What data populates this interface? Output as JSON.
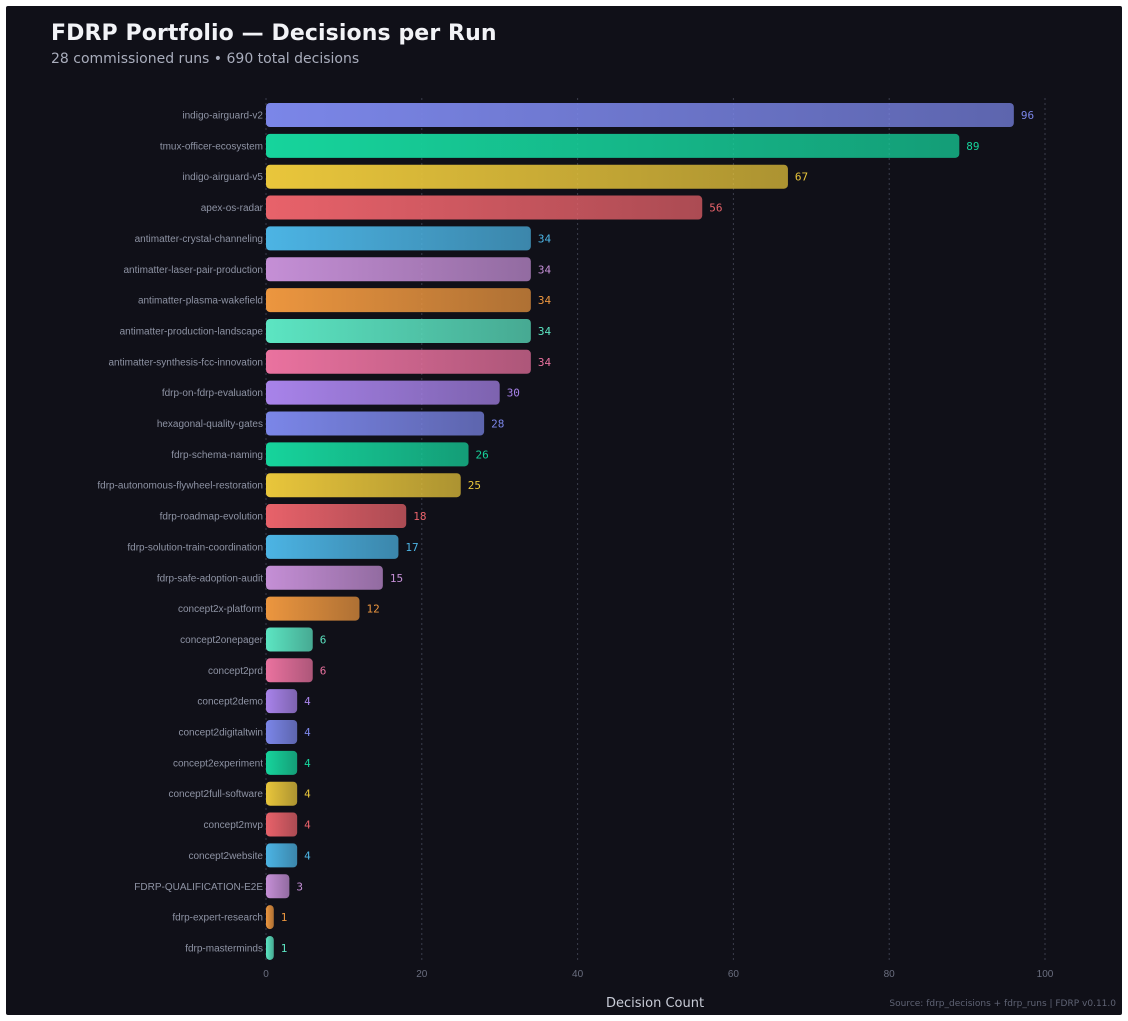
{
  "chart_data": {
    "type": "bar",
    "orientation": "horizontal",
    "title": "FDRP Portfolio — Decisions per Run",
    "subtitle": "28 commissioned runs • 690 total decisions",
    "xlabel": "Decision Count",
    "ylabel": "",
    "source": "Source: fdrp_decisions + fdrp_runs | FDRP v0.11.0",
    "xlim": [
      0,
      100
    ],
    "x_ticks": [
      0,
      20,
      40,
      60,
      80,
      100
    ],
    "grid": "vertical dashed",
    "categories": [
      "indigo-airguard-v2",
      "tmux-officer-ecosystem",
      "indigo-airguard-v5",
      "apex-os-radar",
      "antimatter-crystal-channeling",
      "antimatter-laser-pair-production",
      "antimatter-plasma-wakefield",
      "antimatter-production-landscape",
      "antimatter-synthesis-fcc-innovation",
      "fdrp-on-fdrp-evaluation",
      "hexagonal-quality-gates",
      "fdrp-schema-naming",
      "fdrp-autonomous-flywheel-restoration",
      "fdrp-roadmap-evolution",
      "fdrp-solution-train-coordination",
      "fdrp-safe-adoption-audit",
      "concept2x-platform",
      "concept2onepager",
      "concept2prd",
      "concept2demo",
      "concept2digitaltwin",
      "concept2experiment",
      "concept2full-software",
      "concept2mvp",
      "concept2website",
      "FDRP-QUALIFICATION-E2E",
      "fdrp-expert-research",
      "fdrp-masterminds"
    ],
    "values": [
      96,
      89,
      67,
      56,
      34,
      34,
      34,
      34,
      34,
      30,
      28,
      26,
      25,
      18,
      17,
      15,
      12,
      6,
      6,
      4,
      4,
      4,
      4,
      4,
      4,
      3,
      1,
      1
    ],
    "palette": [
      "#7b86e8",
      "#16d49c",
      "#e9c63b",
      "#e8626a",
      "#4cb4e4",
      "#c58fd6",
      "#ec963f",
      "#5ce5c2",
      "#ea729f",
      "#a883ea"
    ],
    "background": "#101018"
  }
}
